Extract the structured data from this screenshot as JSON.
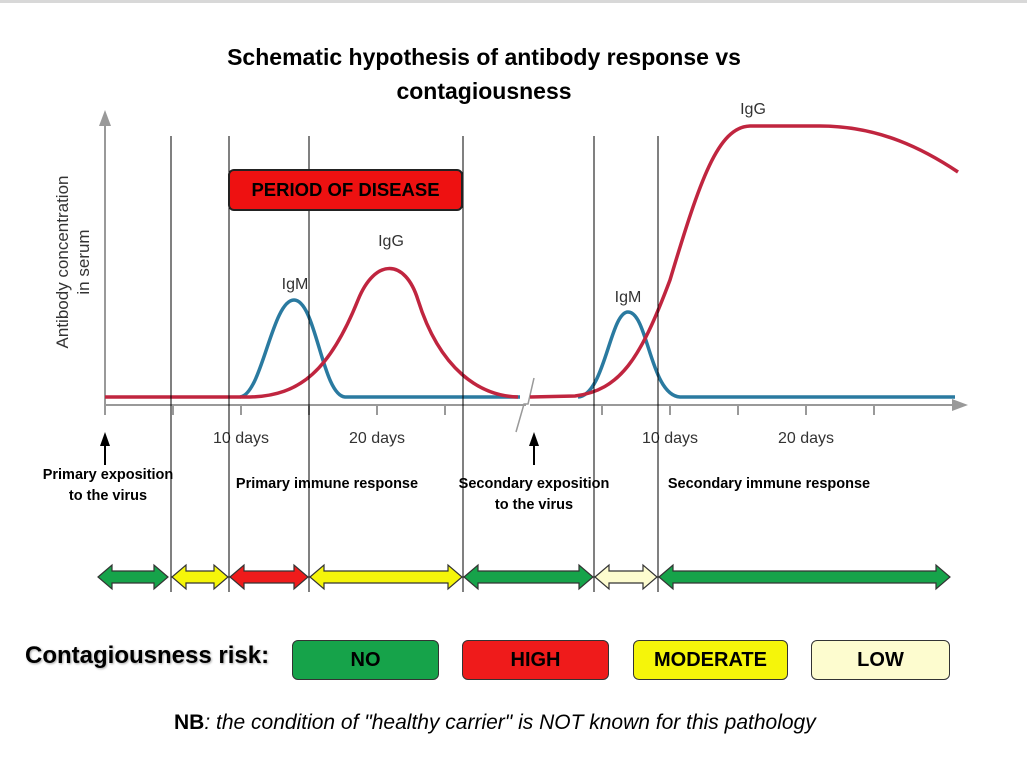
{
  "title": {
    "line1": "Schematic hypothesis of antibody response vs",
    "line2": "contagiousness"
  },
  "chart": {
    "y_axis_label_line1": "Antibody concentration",
    "y_axis_label_line2": "in serum",
    "period_of_disease": "PERIOD OF DISEASE",
    "curve_labels": {
      "primary_igm": "IgM",
      "primary_igg": "IgG",
      "secondary_igm": "IgM",
      "secondary_igg": "IgG"
    },
    "x_tick_labels": [
      "10 days",
      "20 days",
      "10 days",
      "20 days"
    ],
    "colors": {
      "igm": "#2a7aa0",
      "igg": "#c0253f",
      "axis": "#999999"
    }
  },
  "phase_labels": {
    "primary_exposition": [
      "Primary  exposition",
      "to the virus"
    ],
    "primary_response": "Primary  immune response",
    "secondary_exposition": [
      "Secondary  exposition",
      "to the virus"
    ],
    "secondary_response": "Secondary  immune response"
  },
  "risk_timeline": [
    {
      "level": "NO",
      "color": "#16a34a"
    },
    {
      "level": "MODERATE",
      "color": "#f5f50a"
    },
    {
      "level": "HIGH",
      "color": "#ef1b1b"
    },
    {
      "level": "MODERATE",
      "color": "#f5f50a"
    },
    {
      "level": "NO",
      "color": "#16a34a"
    },
    {
      "level": "LOW",
      "color": "#fdfccf"
    },
    {
      "level": "NO",
      "color": "#16a34a"
    }
  ],
  "legend": {
    "title": "Contagiousness risk:",
    "items": [
      {
        "label": "NO",
        "color": "#16a34a"
      },
      {
        "label": "HIGH",
        "color": "#ef1b1b"
      },
      {
        "label": "MODERATE",
        "color": "#f5f50a"
      },
      {
        "label": "LOW",
        "color": "#fdfccf"
      }
    ]
  },
  "note": {
    "prefix": "NB",
    "text": ": the condition  of \"healthy carrier\" is NOT known for this pathology"
  }
}
